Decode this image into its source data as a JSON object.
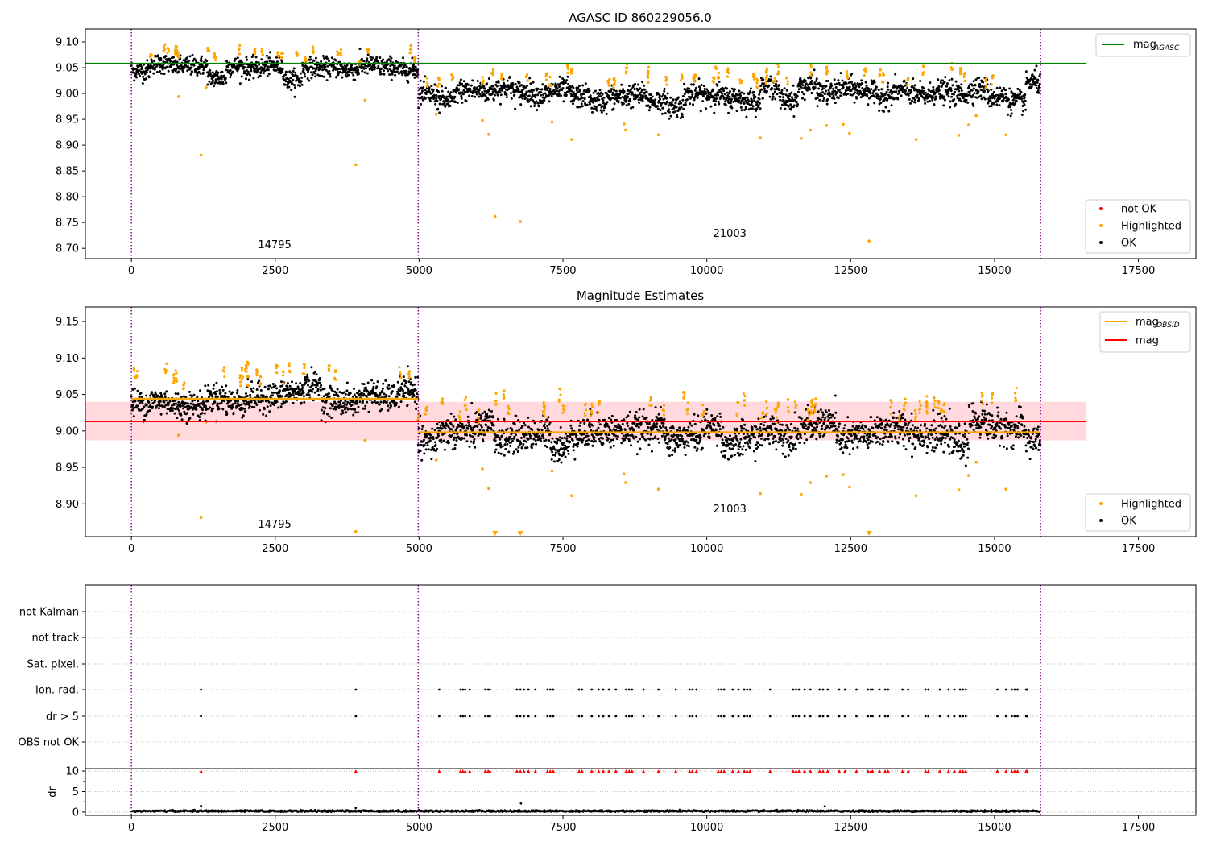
{
  "colors": {
    "ok": "#000000",
    "highlighted": "#ffa500",
    "not_ok": "#ff0000",
    "mag_agasc": "#008000",
    "mag_obsid": "#ffa500",
    "mag": "#ff0000",
    "band": "#ffd0d6",
    "divider": "#800080",
    "grid": "#b0b0b0"
  },
  "chart_data": [
    {
      "type": "scatter",
      "title": "AGASC ID 860229056.0",
      "xlim": [
        -800,
        18500
      ],
      "ylim": [
        8.68,
        9.125
      ],
      "xticks": [
        0,
        2500,
        5000,
        7500,
        10000,
        12500,
        15000,
        17500
      ],
      "yticks": [
        8.7,
        8.75,
        8.8,
        8.85,
        8.9,
        8.95,
        9.0,
        9.05,
        9.1
      ],
      "legend_upper": {
        "placement": "top-right",
        "entries": [
          {
            "key": "mag",
            "sub": "AGASC",
            "color": "#008000"
          }
        ]
      },
      "legend_lower": {
        "placement": "bottom-right",
        "entries": [
          {
            "label": "not OK",
            "color": "#ff0000"
          },
          {
            "label": "Highlighted",
            "color": "#ffa500"
          },
          {
            "label": "OK",
            "color": "#000000"
          }
        ]
      },
      "reference_lines": [
        {
          "name": "mag_AGASC",
          "y": 9.058,
          "x0": -800,
          "x1": 16600,
          "color": "#008000"
        }
      ],
      "obsid_labels": [
        {
          "text": "14795",
          "x": 2490,
          "y": 8.7
        },
        {
          "text": "21003",
          "x": 10400,
          "y": 8.722
        }
      ],
      "dividers_x": [
        0,
        4985,
        15800
      ],
      "segments": [
        {
          "x0": 0,
          "x1": 4985,
          "mean": 9.047,
          "spread": 0.012
        },
        {
          "x0": 4985,
          "x1": 15800,
          "mean": 8.998,
          "spread": 0.014
        }
      ],
      "outliers": [
        {
          "x": 820,
          "y": 8.994
        },
        {
          "x": 1210,
          "y": 8.881
        },
        {
          "x": 1300,
          "y": 9.012
        },
        {
          "x": 3900,
          "y": 8.862
        },
        {
          "x": 4060,
          "y": 8.987
        },
        {
          "x": 5300,
          "y": 8.96
        },
        {
          "x": 6100,
          "y": 8.948
        },
        {
          "x": 6210,
          "y": 8.921
        },
        {
          "x": 6320,
          "y": 8.762
        },
        {
          "x": 6760,
          "y": 8.752
        },
        {
          "x": 7310,
          "y": 8.945
        },
        {
          "x": 7650,
          "y": 8.911
        },
        {
          "x": 8560,
          "y": 8.941
        },
        {
          "x": 8590,
          "y": 8.929
        },
        {
          "x": 9160,
          "y": 8.92
        },
        {
          "x": 10930,
          "y": 8.914
        },
        {
          "x": 11640,
          "y": 8.913
        },
        {
          "x": 11800,
          "y": 8.929
        },
        {
          "x": 12080,
          "y": 8.938
        },
        {
          "x": 12370,
          "y": 8.94
        },
        {
          "x": 12480,
          "y": 8.923
        },
        {
          "x": 12820,
          "y": 8.714
        },
        {
          "x": 13640,
          "y": 8.911
        },
        {
          "x": 14380,
          "y": 8.919
        },
        {
          "x": 14550,
          "y": 8.939
        },
        {
          "x": 14680,
          "y": 8.957
        },
        {
          "x": 15200,
          "y": 8.92
        }
      ]
    },
    {
      "type": "scatter",
      "title": "Magnitude Estimates",
      "xlim": [
        -800,
        18500
      ],
      "ylim": [
        8.855,
        9.17
      ],
      "xticks": [
        0,
        2500,
        5000,
        7500,
        10000,
        12500,
        15000,
        17500
      ],
      "yticks": [
        8.9,
        8.95,
        9.0,
        9.05,
        9.1,
        9.15
      ],
      "legend_upper": {
        "placement": "top-right",
        "entries": [
          {
            "key": "mag",
            "sub": "OBSID",
            "color": "#ffa500"
          },
          {
            "key": "mag",
            "sub": "",
            "color": "#ff0000"
          }
        ]
      },
      "legend_lower": {
        "placement": "bottom-right",
        "entries": [
          {
            "label": "Highlighted",
            "color": "#ffa500"
          },
          {
            "label": "OK",
            "color": "#000000"
          }
        ]
      },
      "reference_lines": [
        {
          "name": "mag",
          "y": 9.013,
          "x0": -800,
          "x1": 16600,
          "color": "#ff0000"
        }
      ],
      "band": {
        "y0": 8.987,
        "y1": 9.04,
        "x0": -800,
        "x1": 16600
      },
      "obsid_means": [
        {
          "x0": 0,
          "x1": 4985,
          "y": 9.044
        },
        {
          "x0": 4985,
          "x1": 15800,
          "y": 8.998
        }
      ],
      "obsid_labels": [
        {
          "text": "14795",
          "x": 2490,
          "y": 8.867
        },
        {
          "text": "21003",
          "x": 10400,
          "y": 8.888
        }
      ],
      "dividers_x": [
        0,
        4985,
        15800
      ],
      "segments": [
        {
          "x0": 0,
          "x1": 4985,
          "mean": 9.047,
          "spread": 0.012
        },
        {
          "x0": 4985,
          "x1": 15800,
          "mean": 8.998,
          "spread": 0.014
        }
      ],
      "outliers": [
        {
          "x": 820,
          "y": 8.994
        },
        {
          "x": 1210,
          "y": 8.881
        },
        {
          "x": 1300,
          "y": 9.012
        },
        {
          "x": 3900,
          "y": 8.862
        },
        {
          "x": 4060,
          "y": 8.987
        },
        {
          "x": 5300,
          "y": 8.96
        },
        {
          "x": 6100,
          "y": 8.948
        },
        {
          "x": 6210,
          "y": 8.921
        },
        {
          "x": 7310,
          "y": 8.945
        },
        {
          "x": 7650,
          "y": 8.911
        },
        {
          "x": 8560,
          "y": 8.941
        },
        {
          "x": 8590,
          "y": 8.929
        },
        {
          "x": 9160,
          "y": 8.92
        },
        {
          "x": 10930,
          "y": 8.914
        },
        {
          "x": 11640,
          "y": 8.913
        },
        {
          "x": 11800,
          "y": 8.929
        },
        {
          "x": 12080,
          "y": 8.938
        },
        {
          "x": 12370,
          "y": 8.94
        },
        {
          "x": 12480,
          "y": 8.923
        },
        {
          "x": 13640,
          "y": 8.911
        },
        {
          "x": 14380,
          "y": 8.919
        },
        {
          "x": 14550,
          "y": 8.939
        },
        {
          "x": 14680,
          "y": 8.957
        },
        {
          "x": 15200,
          "y": 8.92
        }
      ],
      "below_range_markers": [
        6320,
        6760,
        12820
      ]
    },
    {
      "type": "scatter",
      "title": "",
      "xlim": [
        -800,
        18500
      ],
      "categories": [
        "OBS not OK",
        "dr > 5",
        "Ion. rad.",
        "Sat. pixel.",
        "not track",
        "not Kalman"
      ],
      "dividers_x": [
        0,
        4985,
        15800
      ],
      "flag_times": [
        1210,
        3900,
        5350,
        5720,
        5760,
        5800,
        5880,
        6150,
        6200,
        6230,
        6700,
        6760,
        6820,
        6900,
        7020,
        7230,
        7280,
        7330,
        7780,
        7830,
        8000,
        8120,
        8200,
        8300,
        8420,
        8600,
        8650,
        8700,
        8900,
        9160,
        9460,
        9700,
        9750,
        9820,
        10200,
        10250,
        10300,
        10450,
        10550,
        10650,
        10700,
        10750,
        11100,
        11500,
        11550,
        11600,
        11700,
        11800,
        11960,
        12020,
        12100,
        12300,
        12400,
        12600,
        12800,
        12850,
        12880,
        13000,
        13100,
        13150,
        13400,
        13500,
        13800,
        13850,
        14050,
        14200,
        14300,
        14400,
        14450,
        14500,
        15050,
        15200,
        15300,
        15350,
        15400,
        15550,
        15570
      ]
    },
    {
      "type": "scatter",
      "title": "",
      "ylabel": "dr",
      "xlim": [
        -800,
        18500
      ],
      "ylim": [
        -0.8,
        10.6
      ],
      "xticks": [
        0,
        2500,
        5000,
        7500,
        10000,
        12500,
        15000,
        17500
      ],
      "yticks": [
        0,
        5,
        10
      ],
      "clip_value": 10,
      "dividers_x": [
        0,
        4985,
        15800
      ],
      "baseline_mean": 0.25,
      "spikes": [
        {
          "x": 1210,
          "y": 1.5
        },
        {
          "x": 3900,
          "y": 1.0
        },
        {
          "x": 6770,
          "y": 2.1
        },
        {
          "x": 12050,
          "y": 1.4
        }
      ]
    }
  ]
}
